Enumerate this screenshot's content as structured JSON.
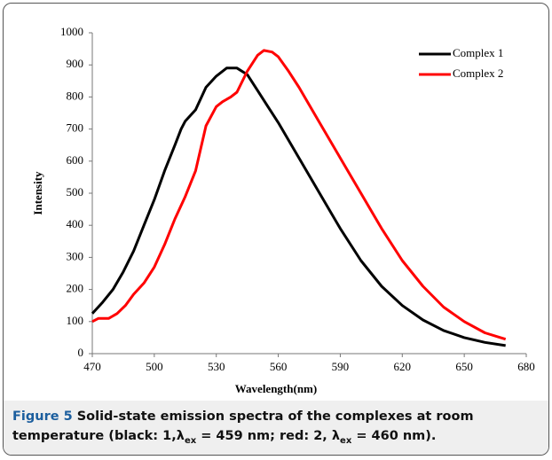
{
  "chart_data": {
    "type": "line",
    "xlabel": "Wavelength(nm)",
    "ylabel": "Intensity",
    "xlim": [
      470,
      680
    ],
    "xticks": [
      470,
      500,
      530,
      560,
      590,
      620,
      650,
      680
    ],
    "ylim": [
      0,
      1000
    ],
    "yticks": [
      0,
      100,
      200,
      300,
      400,
      500,
      600,
      700,
      800,
      900,
      1000
    ],
    "legend": "top-right",
    "series": [
      {
        "name": "Complex 1",
        "color": "#000000",
        "x": [
          470,
          475,
          480,
          485,
          490,
          495,
          500,
          505,
          510,
          513,
          515,
          520,
          525,
          530,
          535,
          540,
          545,
          550,
          555,
          560,
          570,
          580,
          590,
          600,
          610,
          620,
          630,
          640,
          650,
          660,
          670
        ],
        "values": [
          125,
          160,
          200,
          255,
          320,
          400,
          480,
          570,
          650,
          700,
          725,
          760,
          830,
          865,
          890,
          890,
          870,
          820,
          770,
          720,
          610,
          500,
          390,
          290,
          210,
          150,
          105,
          72,
          50,
          35,
          25
        ]
      },
      {
        "name": "Complex 2",
        "color": "#ff0000",
        "x": [
          470,
          473,
          478,
          482,
          486,
          490,
          495,
          500,
          505,
          510,
          515,
          520,
          525,
          530,
          533,
          537,
          540,
          545,
          550,
          553,
          557,
          560,
          565,
          570,
          580,
          590,
          600,
          610,
          620,
          630,
          640,
          650,
          660,
          670
        ],
        "values": [
          100,
          110,
          110,
          125,
          150,
          185,
          220,
          270,
          340,
          420,
          490,
          570,
          710,
          770,
          785,
          800,
          815,
          880,
          930,
          945,
          940,
          925,
          880,
          830,
          720,
          610,
          500,
          390,
          290,
          210,
          145,
          100,
          65,
          45
        ]
      }
    ],
    "caption": {
      "label": "Figure 5",
      "segments": [
        "Solid-state emission spectra of the complexes at room temperature (black: 1,λ",
        "ex",
        " = 459 nm; red: 2, λ",
        "ex",
        " = 460 nm)."
      ]
    }
  }
}
